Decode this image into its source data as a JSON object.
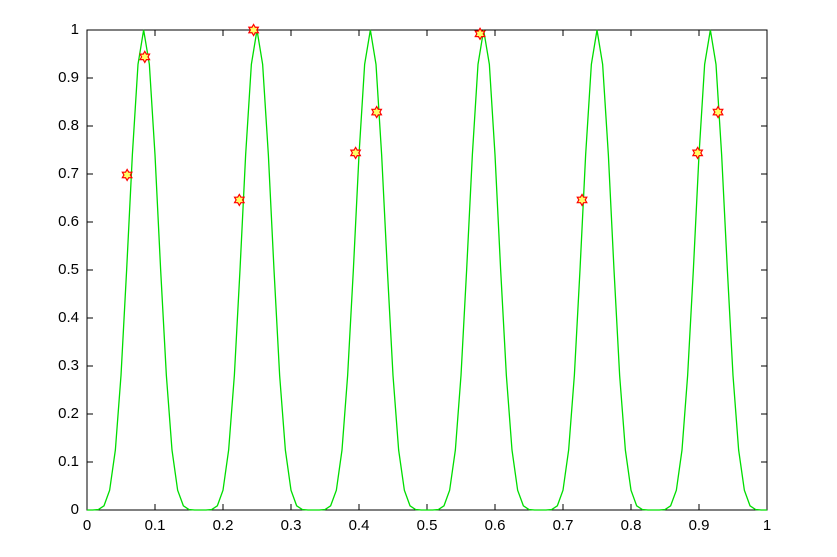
{
  "chart_data": {
    "type": "line",
    "xlim": [
      0,
      1
    ],
    "ylim": [
      0,
      1
    ],
    "xticks": [
      0,
      0.1,
      0.2,
      0.3,
      0.4,
      0.5,
      0.6,
      0.7,
      0.8,
      0.9,
      1
    ],
    "yticks": [
      0,
      0.1,
      0.2,
      0.3,
      0.4,
      0.5,
      0.6,
      0.7,
      0.8,
      0.9,
      1
    ],
    "series": [
      {
        "type": "line",
        "color": "#00dd00",
        "x": [
          0,
          0.0083,
          0.0167,
          0.025,
          0.0333,
          0.0417,
          0.05,
          0.0583,
          0.0667,
          0.075,
          0.0833,
          0.0917,
          0.1,
          0.1083,
          0.1167,
          0.125,
          0.1333,
          0.1417,
          0.15,
          0.1583,
          0.1667,
          0.175,
          0.1833,
          0.1917,
          0.2,
          0.2083,
          0.2167,
          0.225,
          0.2333,
          0.2417,
          0.25,
          0.2583,
          0.2667,
          0.275,
          0.2833,
          0.2917,
          0.3,
          0.3083,
          0.3167,
          0.325,
          0.3333,
          0.3417,
          0.35,
          0.3583,
          0.3667,
          0.375,
          0.3833,
          0.3917,
          0.4,
          0.4083,
          0.4167,
          0.425,
          0.4333,
          0.4417,
          0.45,
          0.4583,
          0.4667,
          0.475,
          0.4833,
          0.4917,
          0.5,
          0.5083,
          0.5167,
          0.525,
          0.5333,
          0.5417,
          0.55,
          0.5583,
          0.5667,
          0.575,
          0.5833,
          0.5917,
          0.6,
          0.6083,
          0.6167,
          0.625,
          0.6333,
          0.6417,
          0.65,
          0.6583,
          0.6667,
          0.675,
          0.6833,
          0.6917,
          0.7,
          0.7083,
          0.7167,
          0.725,
          0.7333,
          0.7417,
          0.75,
          0.7583,
          0.7667,
          0.775,
          0.7833,
          0.7917,
          0.8,
          0.8083,
          0.8167,
          0.825,
          0.8333,
          0.8417,
          0.85,
          0.8583,
          0.8667,
          0.875,
          0.8833,
          0.8917,
          0.9,
          0.9083,
          0.9167,
          0.925,
          0.9333,
          0.9417,
          0.95,
          0.9583,
          0.9667,
          0.975,
          0.9833,
          0.9917,
          1
        ],
        "values": [
          0,
          0,
          0.0009,
          0.0088,
          0.0412,
          0.125,
          0.2804,
          0.5004,
          0.74,
          0.9284,
          1,
          0.9284,
          0.74,
          0.5004,
          0.2804,
          0.125,
          0.0412,
          0.0088,
          0.0009,
          0,
          0,
          0,
          0.0009,
          0.0088,
          0.0412,
          0.125,
          0.2804,
          0.5004,
          0.74,
          0.9284,
          1,
          0.9284,
          0.74,
          0.5004,
          0.2804,
          0.125,
          0.0412,
          0.0088,
          0.0009,
          0,
          0,
          0,
          0.0009,
          0.0088,
          0.0412,
          0.125,
          0.2804,
          0.5004,
          0.74,
          0.9284,
          1,
          0.9284,
          0.74,
          0.5004,
          0.2804,
          0.125,
          0.0412,
          0.0088,
          0.0009,
          0,
          0,
          0,
          0.0009,
          0.0088,
          0.0412,
          0.125,
          0.2804,
          0.5004,
          0.74,
          0.9284,
          1,
          0.9284,
          0.74,
          0.5004,
          0.2804,
          0.125,
          0.0412,
          0.0088,
          0.0009,
          0,
          0,
          0,
          0.0009,
          0.0088,
          0.0412,
          0.125,
          0.2804,
          0.5004,
          0.74,
          0.9284,
          1,
          0.9284,
          0.74,
          0.5004,
          0.2804,
          0.125,
          0.0412,
          0.0088,
          0.0009,
          0,
          0,
          0,
          0.0009,
          0.0088,
          0.0412,
          0.125,
          0.2804,
          0.5004,
          0.74,
          0.9284,
          1,
          0.9284,
          0.74,
          0.5004,
          0.2804,
          0.125,
          0.0412,
          0.0088,
          0.0009,
          0,
          0
        ]
      },
      {
        "type": "scatter",
        "color": "#ff0000",
        "marker": "hexagram",
        "x": [
          0.059,
          0.085,
          0.224,
          0.245,
          0.395,
          0.426,
          0.578,
          0.728,
          0.898,
          0.928
        ],
        "values": [
          0.698,
          0.944,
          0.646,
          1.0,
          0.744,
          0.829,
          0.992,
          0.646,
          0.744,
          0.829
        ]
      }
    ]
  }
}
